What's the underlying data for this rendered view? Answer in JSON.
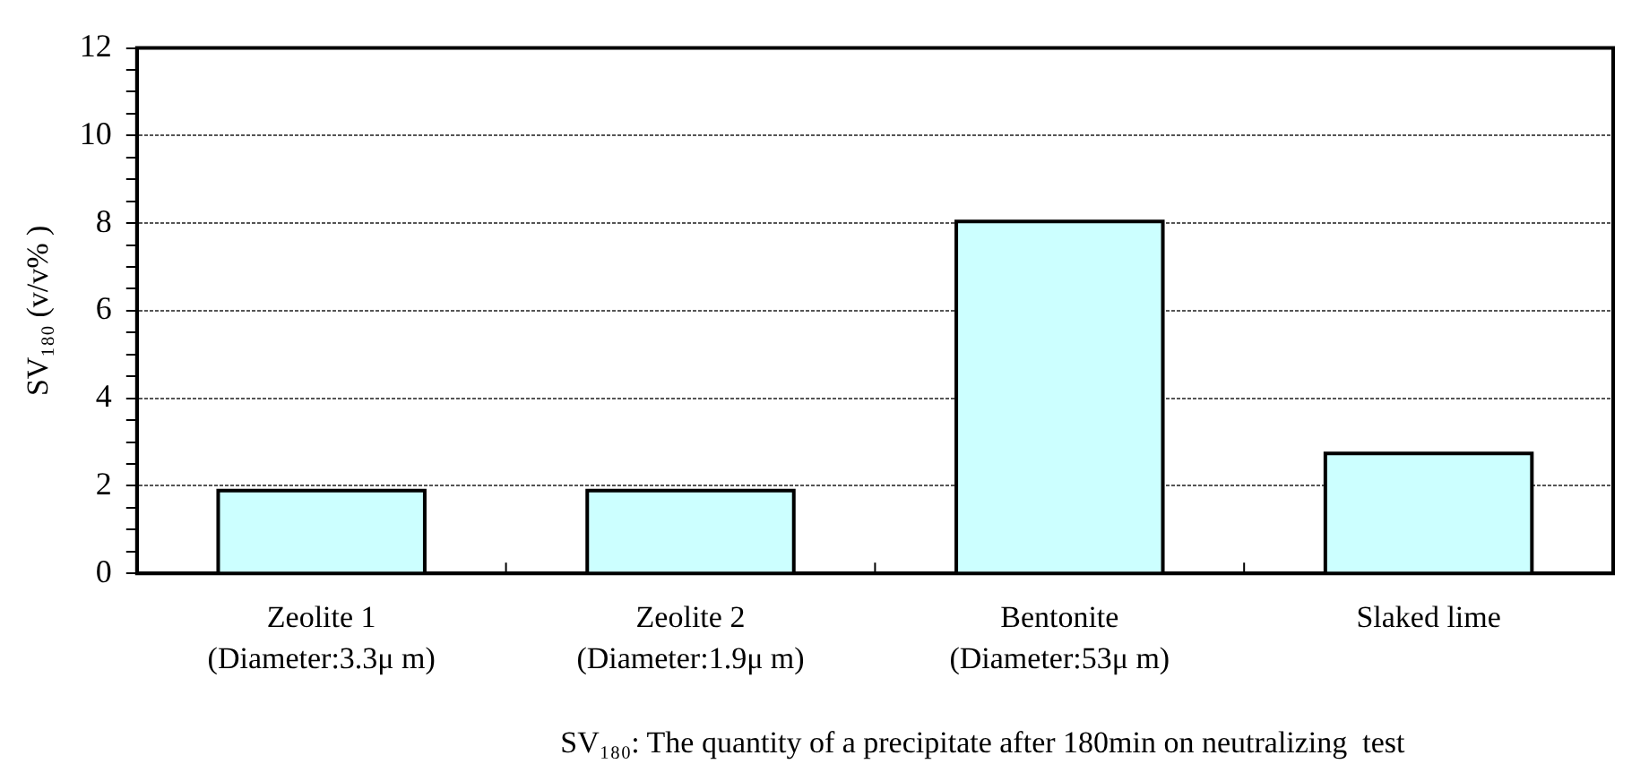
{
  "chart_data": {
    "type": "bar",
    "categories": [
      "Zeolite 1\n(Diameter:3.3μ m)",
      "Zeolite 2\n(Diameter:1.9μ m)",
      "Bentonite\n(Diameter:53μ m)",
      "Slaked lime"
    ],
    "values": [
      1.85,
      1.85,
      8.0,
      2.7
    ],
    "color": "#ccffff",
    "ylabel": "SV₁₈₀ (v/v% )",
    "ylim": [
      0,
      12
    ],
    "yticks": [
      0,
      {
        "value": 0.5,
        "label": null
      },
      {
        "value": 1,
        "label": null
      },
      {
        "value": 1.5,
        "label": null
      },
      2,
      {
        "value": 2.5,
        "label": null
      },
      {
        "value": 3,
        "label": null
      },
      {
        "value": 3.5,
        "label": null
      },
      4,
      {
        "value": 4.5,
        "label": null
      },
      {
        "value": 5,
        "label": null
      },
      {
        "value": 5.5,
        "label": null
      },
      6,
      {
        "value": 6.5,
        "label": null
      },
      {
        "value": 7,
        "label": null
      },
      {
        "value": 7.5,
        "label": null
      },
      8,
      {
        "value": 8.5,
        "label": null
      },
      {
        "value": 9,
        "label": null
      },
      {
        "value": 9.5,
        "label": null
      },
      10,
      {
        "value": 10.5,
        "label": null
      },
      {
        "value": 11,
        "label": null
      },
      {
        "value": 11.5,
        "label": null
      },
      12
    ],
    "grid": "y",
    "legend": false,
    "annotations": [
      "SV₁₈₀: The quantity of a precipitate after 180min on neutralizing  test"
    ]
  }
}
